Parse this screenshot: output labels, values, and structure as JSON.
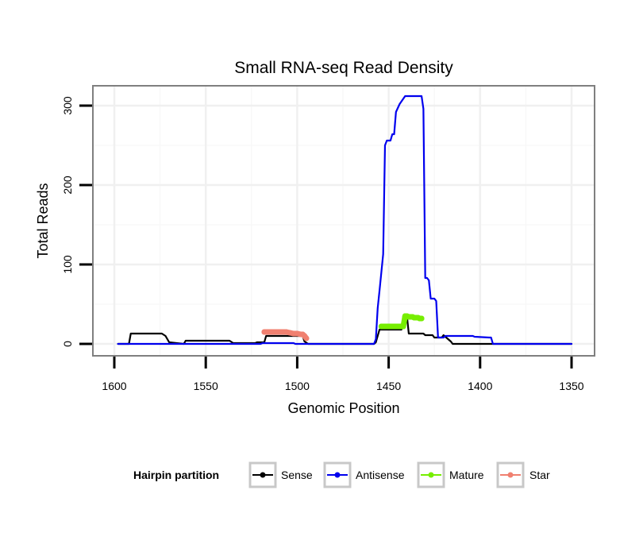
{
  "chart_data": {
    "type": "line",
    "title": "Small RNA-seq Read Density",
    "xlabel": "Genomic Position",
    "ylabel": "Total Reads",
    "xlim": [
      1600,
      1350
    ],
    "ylim": [
      0,
      320
    ],
    "x_ticks": [
      1600,
      1550,
      1500,
      1450,
      1400,
      1350
    ],
    "x_tick_labels": [
      "1600",
      "1550",
      "1500",
      "1450",
      "1400",
      "1350"
    ],
    "y_ticks": [
      0,
      100,
      200,
      300
    ],
    "y_tick_labels": [
      "0",
      "100",
      "200",
      "300"
    ],
    "grid": true,
    "legend": {
      "title": "Hairpin partition",
      "position": "bottom",
      "entries": [
        "Sense",
        "Antisense",
        "Mature",
        "Star"
      ]
    },
    "colors": {
      "Sense": "#000000",
      "Antisense": "#0000ee",
      "Mature": "#76ee00",
      "Star": "#f08070"
    },
    "series": [
      {
        "name": "Sense",
        "x": [
          1598,
          1592,
          1591,
          1574,
          1572,
          1570,
          1562,
          1561,
          1537,
          1535,
          1523,
          1522,
          1518,
          1517,
          1497,
          1496,
          1494,
          1458,
          1457,
          1455,
          1443,
          1442,
          1440,
          1439,
          1431,
          1430,
          1426,
          1425,
          1421,
          1420,
          1416,
          1415,
          1350
        ],
        "y": [
          0,
          0,
          13,
          13,
          10,
          2,
          0,
          4,
          4,
          1,
          1,
          2,
          2,
          10,
          10,
          3,
          0,
          0,
          2,
          18,
          18,
          35,
          35,
          13,
          13,
          11,
          11,
          8,
          8,
          11,
          3,
          0,
          0
        ]
      },
      {
        "name": "Antisense",
        "x": [
          1598,
          1520,
          1519,
          1502,
          1501,
          1458,
          1457,
          1456,
          1455,
          1454,
          1453,
          1452,
          1451,
          1449,
          1448,
          1447,
          1446,
          1444,
          1441,
          1432,
          1431,
          1430,
          1429,
          1428,
          1427,
          1425,
          1424,
          1423,
          1420,
          1419,
          1404,
          1403,
          1395,
          1394,
          1393,
          1350
        ],
        "y": [
          0,
          0,
          1,
          1,
          0,
          0,
          6,
          45,
          67,
          90,
          113,
          250,
          256,
          256,
          264,
          264,
          292,
          302,
          312,
          312,
          296,
          83,
          83,
          80,
          57,
          57,
          54,
          8,
          8,
          10,
          10,
          9,
          8,
          8,
          0,
          0
        ]
      },
      {
        "name": "Mature",
        "x": [
          1454,
          1452,
          1450,
          1448,
          1446,
          1444,
          1442,
          1441,
          1440,
          1439,
          1438,
          1437,
          1436,
          1435,
          1434,
          1433,
          1432
        ],
        "y": [
          22,
          22,
          22,
          22,
          22,
          22,
          22,
          35,
          35,
          34,
          34,
          34,
          33,
          33,
          33,
          32,
          32
        ]
      },
      {
        "name": "Star",
        "x": [
          1518,
          1516,
          1514,
          1512,
          1510,
          1508,
          1506,
          1504,
          1502,
          1500,
          1498,
          1497,
          1496,
          1495
        ],
        "y": [
          15,
          15,
          15,
          15,
          15,
          15,
          15,
          14,
          13,
          13,
          12,
          12,
          10,
          7
        ]
      }
    ]
  }
}
